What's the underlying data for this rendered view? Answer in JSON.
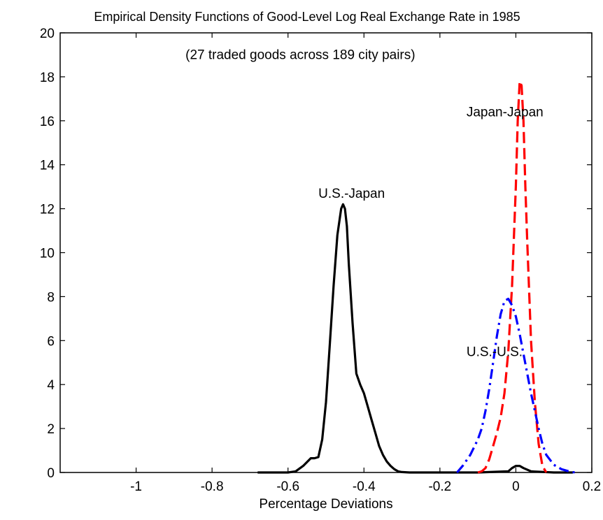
{
  "chart_data": {
    "type": "line",
    "title": "Empirical Density Functions of Good-Level Log Real Exchange Rate in 1985",
    "xlabel": "Percentage Deviations",
    "ylabel": "",
    "xlim": [
      -1.2,
      0.2
    ],
    "ylim": [
      0,
      20
    ],
    "x_ticks": [
      -1,
      -0.8,
      -0.6,
      -0.4,
      -0.2,
      0,
      0.2
    ],
    "x_tick_labels": [
      "-1",
      "-0.8",
      "-0.6",
      "-0.4",
      "-0.2",
      "0",
      "0.2"
    ],
    "y_ticks": [
      0,
      2,
      4,
      6,
      8,
      10,
      12,
      14,
      16,
      18,
      20
    ],
    "y_tick_labels": [
      "0",
      "2",
      "4",
      "6",
      "8",
      "10",
      "12",
      "14",
      "16",
      "18",
      "20"
    ],
    "grid": false,
    "legend": "none",
    "annotations": [
      {
        "text": "(27 traded goods across 189 city pairs)",
        "x": -0.87,
        "y": 18.8
      },
      {
        "text": "Japan-Japan",
        "x": -0.13,
        "y": 16.2
      },
      {
        "text": "U.S.-Japan",
        "x": -0.52,
        "y": 12.5
      },
      {
        "text": "U.S.-U.S.",
        "x": -0.13,
        "y": 5.3
      }
    ],
    "series": [
      {
        "label_ref": "U.S.-Japan",
        "color": "#000000",
        "style": "solid",
        "x": [
          -0.68,
          -0.6,
          -0.58,
          -0.56,
          -0.54,
          -0.53,
          -0.52,
          -0.51,
          -0.5,
          -0.49,
          -0.48,
          -0.47,
          -0.46,
          -0.455,
          -0.45,
          -0.445,
          -0.44,
          -0.43,
          -0.42,
          -0.41,
          -0.4,
          -0.39,
          -0.38,
          -0.37,
          -0.36,
          -0.35,
          -0.34,
          -0.33,
          -0.32,
          -0.31,
          -0.3,
          -0.28,
          -0.2,
          -0.1,
          -0.02,
          -0.01,
          0,
          0.01,
          0.02,
          0.04,
          0.1,
          0.15
        ],
        "y": [
          0,
          0,
          0.05,
          0.3,
          0.65,
          0.65,
          0.7,
          1.5,
          3.2,
          5.8,
          8.5,
          10.8,
          12.0,
          12.2,
          12.0,
          11.2,
          9.5,
          6.8,
          4.5,
          4.0,
          3.6,
          3.0,
          2.4,
          1.8,
          1.2,
          0.8,
          0.5,
          0.3,
          0.15,
          0.05,
          0.02,
          0,
          0,
          0,
          0.05,
          0.2,
          0.3,
          0.3,
          0.2,
          0.05,
          0,
          0
        ]
      },
      {
        "label_ref": "Japan-Japan",
        "color": "#ff0000",
        "style": "dashed",
        "x": [
          -0.1,
          -0.09,
          -0.08,
          -0.07,
          -0.06,
          -0.05,
          -0.04,
          -0.03,
          -0.02,
          -0.01,
          0,
          0.005,
          0.01,
          0.015,
          0.02,
          0.025,
          0.03,
          0.04,
          0.05,
          0.06,
          0.07,
          0.08
        ],
        "y": [
          0,
          0.05,
          0.2,
          0.6,
          1.2,
          1.8,
          2.5,
          3.6,
          5.5,
          8.5,
          13.0,
          16.0,
          17.8,
          17.6,
          16.0,
          13.0,
          10.5,
          6.0,
          3.2,
          1.3,
          0.3,
          0
        ]
      },
      {
        "label_ref": "U.S.-U.S.",
        "color": "#0000ff",
        "style": "dashdot",
        "x": [
          -0.155,
          -0.14,
          -0.12,
          -0.1,
          -0.09,
          -0.08,
          -0.07,
          -0.06,
          -0.05,
          -0.04,
          -0.03,
          -0.02,
          -0.01,
          0,
          0.01,
          0.02,
          0.03,
          0.04,
          0.05,
          0.06,
          0.07,
          0.08,
          0.1,
          0.12,
          0.14,
          0.155
        ],
        "y": [
          0,
          0.3,
          0.8,
          1.5,
          2.0,
          2.8,
          3.8,
          5.0,
          6.2,
          7.2,
          7.8,
          7.9,
          7.6,
          7.1,
          6.3,
          5.4,
          4.5,
          3.6,
          2.8,
          2.0,
          1.3,
          0.8,
          0.35,
          0.15,
          0.05,
          0
        ]
      }
    ]
  }
}
